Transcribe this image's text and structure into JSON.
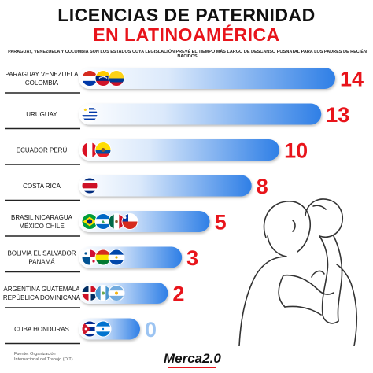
{
  "header": {
    "title_line1": "LICENCIAS DE PATERNIDAD",
    "title_line2": "EN LATINOAMÉRICA",
    "subtitle": "PARAGUAY, VENEZUELA Y COLOMBIA SON LOS ESTADOS CUYA LEGISLACIÓN PREVÉ EL TIEMPO MÁS LARGO DE DESCANSO POSNATAL PARA LOS PADRES DE RECIÉN NACIDOS"
  },
  "footer": {
    "source": "Fuente: Organización Internacional del Trabajo (OIT)",
    "brand": "Merca2.0"
  },
  "colors": {
    "accent": "#e8141b",
    "bar_light": "#dbe9fb",
    "bar_dark": "#2f7fe6",
    "text_dark": "#111111"
  },
  "chart_data": {
    "type": "bar",
    "orientation": "horizontal",
    "categories": [
      [
        "PARAGUAY  VENEZUELA",
        "COLOMBIA"
      ],
      [
        "URUGUAY"
      ],
      [
        "ECUADOR  PERÚ"
      ],
      [
        "COSTA RICA"
      ],
      [
        "BRASIL  NICARAGUA",
        "MÉXICO  CHILE"
      ],
      [
        "BOLIVIA  EL SALVADOR",
        "PANAMÁ"
      ],
      [
        "ARGENTINA  GUATEMALA",
        "REPÚBLICA DOMINICANA"
      ],
      [
        "CUBA  HONDURAS"
      ]
    ],
    "values": [
      14,
      13,
      10,
      8,
      5,
      3,
      2,
      0
    ],
    "flags": [
      [
        "paraguay",
        "venezuela",
        "colombia"
      ],
      [
        "uruguay"
      ],
      [
        "peru",
        "ecuador"
      ],
      [
        "costa-rica"
      ],
      [
        "brazil",
        "nicaragua",
        "mexico",
        "chile"
      ],
      [
        "panama",
        "bolivia",
        "el-salvador"
      ],
      [
        "dominican-republic",
        "guatemala",
        "argentina"
      ],
      [
        "cuba",
        "honduras"
      ]
    ],
    "xlim": [
      0,
      14
    ],
    "grid": false,
    "legend": "none"
  }
}
